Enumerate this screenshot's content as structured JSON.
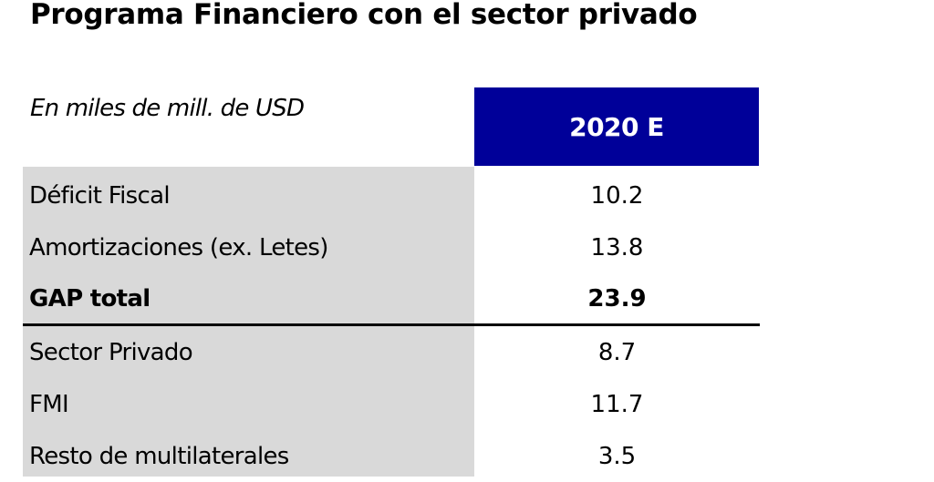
{
  "title": "Programa Financiero con el sector privado",
  "units_label": "En miles de mill. de USD",
  "column_header": "2020 E",
  "rows": [
    {
      "label": "Déficit Fiscal",
      "value": "10.2"
    },
    {
      "label": "Amortizaciones (ex. Letes)",
      "value": "13.8"
    },
    {
      "label": "GAP total",
      "value": "23.9"
    },
    {
      "label": "Sector Privado",
      "value": "8.7"
    },
    {
      "label": "FMI",
      "value": "11.7"
    },
    {
      "label": "Resto de multilaterales",
      "value": "3.5"
    }
  ],
  "colors": {
    "header_bg": "#000099",
    "label_bg": "#d9d9d9"
  }
}
